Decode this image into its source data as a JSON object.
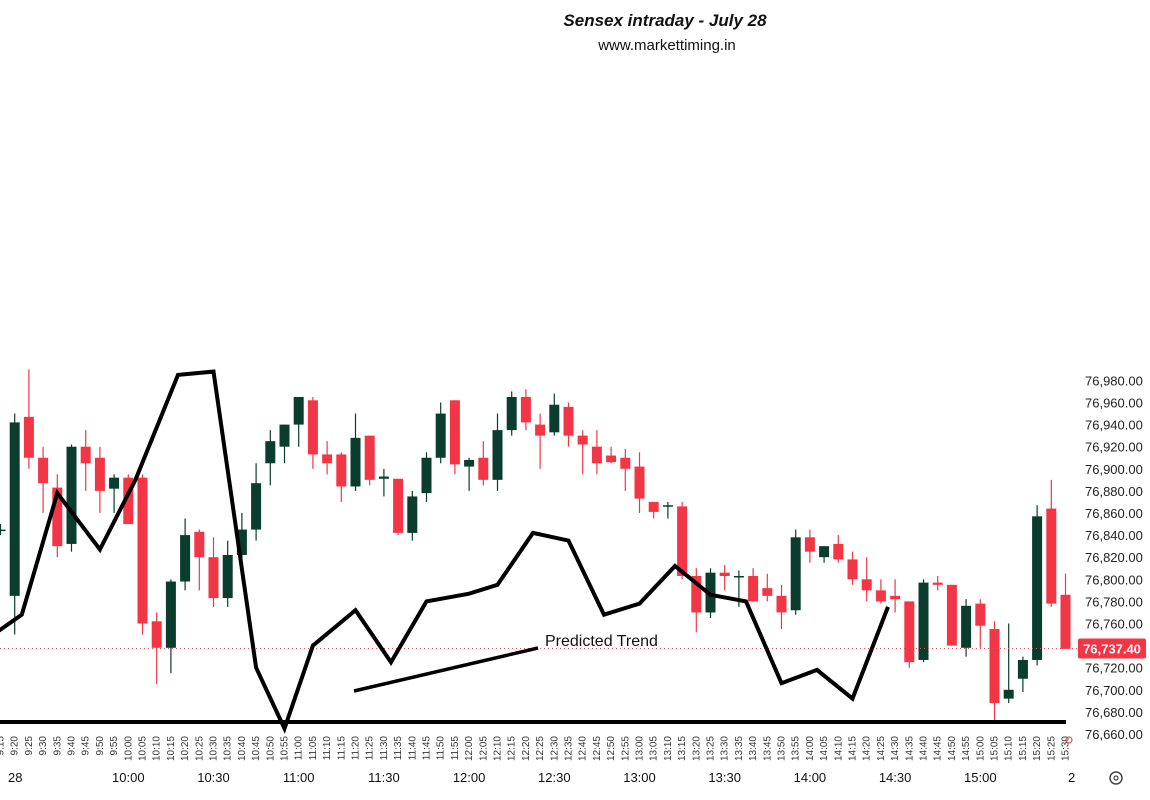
{
  "chart_data": {
    "type": "candlestick",
    "title": "Sensex intraday - July 28",
    "subtitle": "www.markettiming.in",
    "ylim": [
      76655,
      76990
    ],
    "y_ticks": [
      "76,660.00",
      "76,680.00",
      "76,700.00",
      "76,720.00",
      "76,740.00",
      "76,760.00",
      "76,780.00",
      "76,800.00",
      "76,820.00",
      "76,840.00",
      "76,860.00",
      "76,880.00",
      "76,900.00",
      "76,920.00",
      "76,940.00",
      "76,960.00",
      "76,980.00"
    ],
    "y_tick_values": [
      76660,
      76680,
      76700,
      76720,
      76740,
      76760,
      76780,
      76800,
      76820,
      76840,
      76860,
      76880,
      76900,
      76920,
      76940,
      76960,
      76980
    ],
    "last_price": 76737.4,
    "last_price_label": "76,737.40",
    "colors": {
      "up": "#0a3d2e",
      "down": "#f23645",
      "trend": "#000000",
      "price_line": "#e0505a",
      "price_tag": "#f23645"
    },
    "date_label": "28",
    "x_main_labels": [
      "10:00",
      "10:30",
      "11:00",
      "11:30",
      "12:00",
      "12:30",
      "13:00",
      "13:30",
      "14:00",
      "14:30",
      "15:00"
    ],
    "x_small_labels": [
      "9:15",
      "9:20",
      "9:25",
      "9:30",
      "9:35",
      "9:40",
      "9:45",
      "9:50",
      "9:55",
      "10:00",
      "10:05",
      "10:10",
      "10:15",
      "10:20",
      "10:25",
      "10:30",
      "10:35",
      "10:40",
      "10:45",
      "10:50",
      "10:55",
      "11:00",
      "11:05",
      "11:10",
      "11:15",
      "11:20",
      "11:25",
      "11:30",
      "11:35",
      "11:40",
      "11:45",
      "11:50",
      "11:55",
      "12:00",
      "12:05",
      "12:10",
      "12:15",
      "12:20",
      "12:25",
      "12:30",
      "12:35",
      "12:40",
      "12:45",
      "12:50",
      "12:55",
      "13:00",
      "13:05",
      "13:10",
      "13:15",
      "13:20",
      "13:25",
      "13:30",
      "13:35",
      "13:40",
      "13:45",
      "13:50",
      "13:55",
      "14:00",
      "14:05",
      "14:10",
      "14:15",
      "14:20",
      "14:25",
      "14:30",
      "14:35",
      "14:40",
      "14:45",
      "14:50",
      "14:55",
      "15:00",
      "15:05",
      "15:10",
      "15:15",
      "15:20",
      "15:25",
      "15:30"
    ],
    "x_trailing_label": "2",
    "candles": [
      {
        "o": 76845,
        "h": 76850,
        "l": 76840,
        "c": 76845
      },
      {
        "o": 76785,
        "h": 76950,
        "l": 76750,
        "c": 76942
      },
      {
        "o": 76947,
        "h": 76990,
        "l": 76900,
        "c": 76910
      },
      {
        "o": 76910,
        "h": 76920,
        "l": 76860,
        "c": 76887
      },
      {
        "o": 76883,
        "h": 76895,
        "l": 76820,
        "c": 76830
      },
      {
        "o": 76832,
        "h": 76922,
        "l": 76825,
        "c": 76920
      },
      {
        "o": 76920,
        "h": 76935,
        "l": 76880,
        "c": 76905
      },
      {
        "o": 76910,
        "h": 76920,
        "l": 76860,
        "c": 76880
      },
      {
        "o": 76882,
        "h": 76895,
        "l": 76860,
        "c": 76892
      },
      {
        "o": 76892,
        "h": 76895,
        "l": 76850,
        "c": 76850
      },
      {
        "o": 76892,
        "h": 76895,
        "l": 76750,
        "c": 76760
      },
      {
        "o": 76762,
        "h": 76770,
        "l": 76705,
        "c": 76738
      },
      {
        "o": 76738,
        "h": 76800,
        "l": 76715,
        "c": 76798
      },
      {
        "o": 76798,
        "h": 76855,
        "l": 76790,
        "c": 76840
      },
      {
        "o": 76843,
        "h": 76845,
        "l": 76790,
        "c": 76820
      },
      {
        "o": 76820,
        "h": 76838,
        "l": 76775,
        "c": 76783
      },
      {
        "o": 76783,
        "h": 76835,
        "l": 76775,
        "c": 76822
      },
      {
        "o": 76822,
        "h": 76860,
        "l": 76800,
        "c": 76845
      },
      {
        "o": 76845,
        "h": 76905,
        "l": 76835,
        "c": 76887
      },
      {
        "o": 76905,
        "h": 76935,
        "l": 76885,
        "c": 76925
      },
      {
        "o": 76920,
        "h": 76940,
        "l": 76905,
        "c": 76940
      },
      {
        "o": 76940,
        "h": 76965,
        "l": 76920,
        "c": 76965
      },
      {
        "o": 76962,
        "h": 76965,
        "l": 76900,
        "c": 76913
      },
      {
        "o": 76913,
        "h": 76925,
        "l": 76895,
        "c": 76905
      },
      {
        "o": 76913,
        "h": 76915,
        "l": 76870,
        "c": 76884
      },
      {
        "o": 76884,
        "h": 76950,
        "l": 76880,
        "c": 76928
      },
      {
        "o": 76930,
        "h": 76930,
        "l": 76885,
        "c": 76890
      },
      {
        "o": 76891,
        "h": 76900,
        "l": 76875,
        "c": 76893
      },
      {
        "o": 76891,
        "h": 76890,
        "l": 76840,
        "c": 76842
      },
      {
        "o": 76842,
        "h": 76880,
        "l": 76835,
        "c": 76875
      },
      {
        "o": 76878,
        "h": 76915,
        "l": 76870,
        "c": 76910
      },
      {
        "o": 76910,
        "h": 76960,
        "l": 76905,
        "c": 76950
      },
      {
        "o": 76962,
        "h": 76962,
        "l": 76895,
        "c": 76904
      },
      {
        "o": 76902,
        "h": 76910,
        "l": 76880,
        "c": 76908
      },
      {
        "o": 76910,
        "h": 76925,
        "l": 76885,
        "c": 76890
      },
      {
        "o": 76890,
        "h": 76950,
        "l": 76880,
        "c": 76935
      },
      {
        "o": 76935,
        "h": 76970,
        "l": 76930,
        "c": 76965
      },
      {
        "o": 76965,
        "h": 76972,
        "l": 76935,
        "c": 76942
      },
      {
        "o": 76940,
        "h": 76950,
        "l": 76900,
        "c": 76930
      },
      {
        "o": 76933,
        "h": 76968,
        "l": 76930,
        "c": 76958
      },
      {
        "o": 76956,
        "h": 76960,
        "l": 76920,
        "c": 76930
      },
      {
        "o": 76930,
        "h": 76935,
        "l": 76895,
        "c": 76922
      },
      {
        "o": 76920,
        "h": 76935,
        "l": 76895,
        "c": 76905
      },
      {
        "o": 76912,
        "h": 76920,
        "l": 76905,
        "c": 76906
      },
      {
        "o": 76910,
        "h": 76918,
        "l": 76880,
        "c": 76900
      },
      {
        "o": 76902,
        "h": 76915,
        "l": 76860,
        "c": 76873
      },
      {
        "o": 76870,
        "h": 76870,
        "l": 76855,
        "c": 76861
      },
      {
        "o": 76866,
        "h": 76870,
        "l": 76855,
        "c": 76867
      },
      {
        "o": 76866,
        "h": 76870,
        "l": 76800,
        "c": 76803
      },
      {
        "o": 76803,
        "h": 76810,
        "l": 76752,
        "c": 76770
      },
      {
        "o": 76770,
        "h": 76810,
        "l": 76765,
        "c": 76806
      },
      {
        "o": 76806,
        "h": 76813,
        "l": 76790,
        "c": 76803
      },
      {
        "o": 76803,
        "h": 76808,
        "l": 76775,
        "c": 76803
      },
      {
        "o": 76803,
        "h": 76810,
        "l": 76780,
        "c": 76780
      },
      {
        "o": 76792,
        "h": 76805,
        "l": 76780,
        "c": 76785
      },
      {
        "o": 76785,
        "h": 76795,
        "l": 76755,
        "c": 76770
      },
      {
        "o": 76772,
        "h": 76845,
        "l": 76768,
        "c": 76838
      },
      {
        "o": 76838,
        "h": 76845,
        "l": 76815,
        "c": 76825
      },
      {
        "o": 76820,
        "h": 76830,
        "l": 76815,
        "c": 76830
      },
      {
        "o": 76832,
        "h": 76840,
        "l": 76815,
        "c": 76818
      },
      {
        "o": 76818,
        "h": 76825,
        "l": 76795,
        "c": 76800
      },
      {
        "o": 76800,
        "h": 76820,
        "l": 76780,
        "c": 76790
      },
      {
        "o": 76790,
        "h": 76800,
        "l": 76778,
        "c": 76780
      },
      {
        "o": 76785,
        "h": 76800,
        "l": 76770,
        "c": 76782
      },
      {
        "o": 76780,
        "h": 76780,
        "l": 76720,
        "c": 76725
      },
      {
        "o": 76727,
        "h": 76800,
        "l": 76725,
        "c": 76797
      },
      {
        "o": 76797,
        "h": 76803,
        "l": 76790,
        "c": 76795
      },
      {
        "o": 76795,
        "h": 76795,
        "l": 76740,
        "c": 76740
      },
      {
        "o": 76738,
        "h": 76782,
        "l": 76730,
        "c": 76776
      },
      {
        "o": 76778,
        "h": 76782,
        "l": 76738,
        "c": 76758
      },
      {
        "o": 76755,
        "h": 76762,
        "l": 76670,
        "c": 76688
      },
      {
        "o": 76692,
        "h": 76760,
        "l": 76688,
        "c": 76700
      },
      {
        "o": 76710,
        "h": 76730,
        "l": 76698,
        "c": 76727
      },
      {
        "o": 76727,
        "h": 76867,
        "l": 76722,
        "c": 76857
      },
      {
        "o": 76864,
        "h": 76890,
        "l": 76775,
        "c": 76778
      },
      {
        "o": 76786,
        "h": 76805,
        "l": 76737,
        "c": 76737
      }
    ],
    "series": [
      {
        "name": "Predicted Trend",
        "points": [
          [
            -0.5,
            76750
          ],
          [
            1.5,
            76768
          ],
          [
            4,
            76878
          ],
          [
            7,
            76827
          ],
          [
            9.5,
            76890
          ],
          [
            12.5,
            76985
          ],
          [
            15,
            76988
          ],
          [
            18,
            76720
          ],
          [
            20,
            76665
          ],
          [
            22,
            76740
          ],
          [
            25,
            76772
          ],
          [
            27.5,
            76725
          ],
          [
            30,
            76780
          ],
          [
            33,
            76787
          ],
          [
            35,
            76795
          ],
          [
            37.5,
            76842
          ],
          [
            40,
            76835
          ],
          [
            42.5,
            76768
          ],
          [
            45,
            76778
          ],
          [
            47.5,
            76812
          ],
          [
            50,
            76786
          ],
          [
            52.5,
            76780
          ],
          [
            55,
            76706
          ],
          [
            57.5,
            76718
          ],
          [
            60,
            76692
          ],
          [
            62.5,
            76775
          ]
        ]
      }
    ],
    "annotation": "Predicted Trend"
  }
}
